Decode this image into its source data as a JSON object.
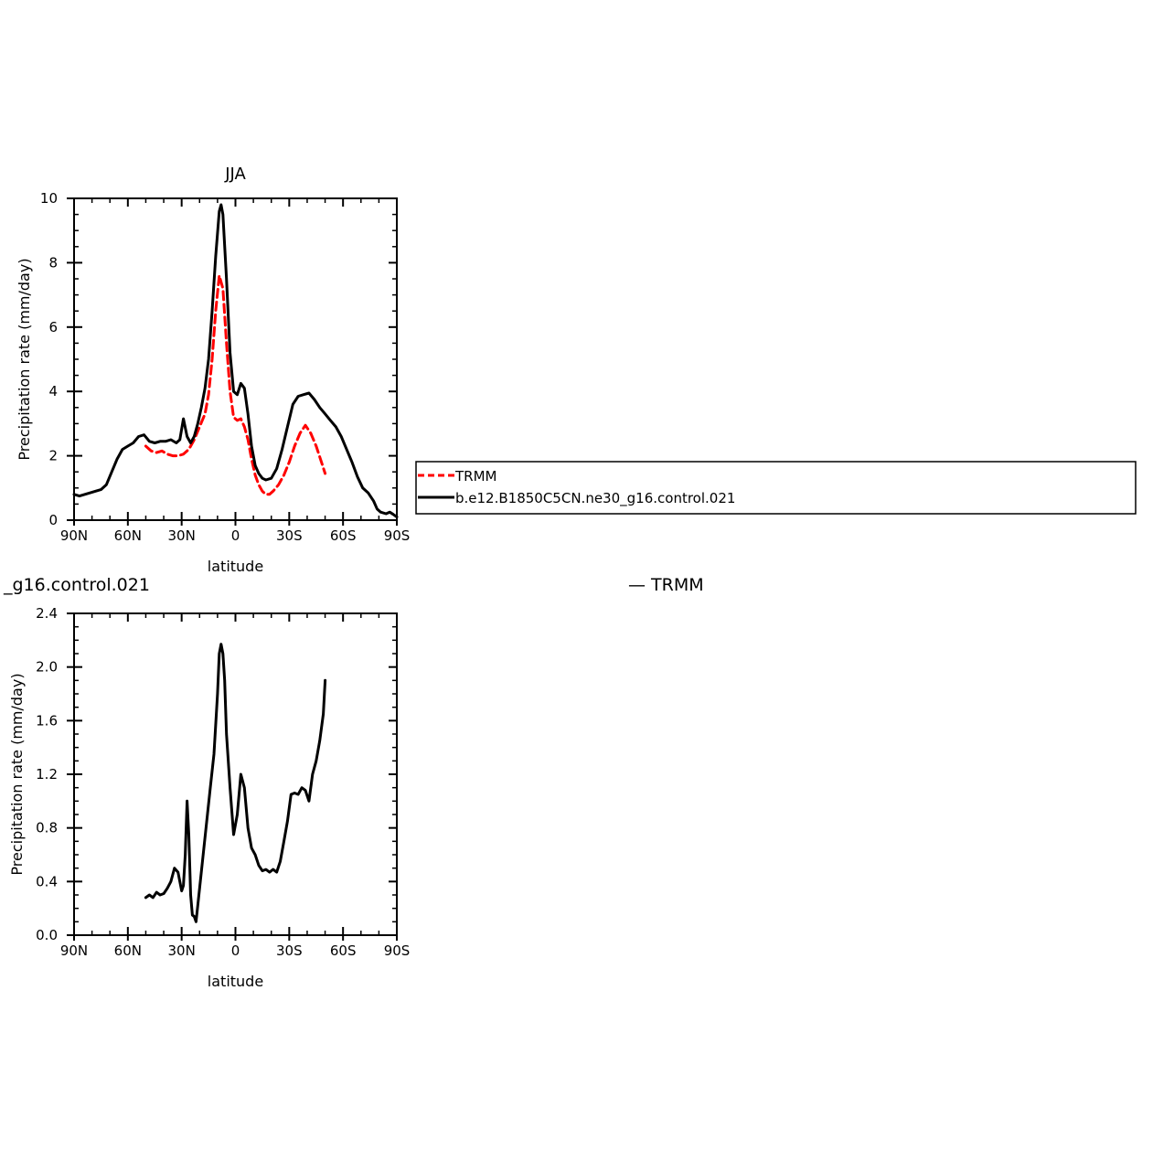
{
  "chart_data": [
    {
      "type": "line",
      "title": "JJA",
      "xlabel": "latitude",
      "ylabel": "Precipitation rate (mm/day)",
      "xlim": [
        -90,
        90
      ],
      "ylim": [
        0,
        10
      ],
      "x_ticks": [
        {
          "value": -90,
          "label": "90N"
        },
        {
          "value": -60,
          "label": "60N"
        },
        {
          "value": -30,
          "label": "30N"
        },
        {
          "value": 0,
          "label": "0"
        },
        {
          "value": 30,
          "label": "30S"
        },
        {
          "value": 60,
          "label": "60S"
        },
        {
          "value": 90,
          "label": "90S"
        }
      ],
      "y_ticks": [
        {
          "value": 0,
          "label": "0"
        },
        {
          "value": 2,
          "label": "2"
        },
        {
          "value": 4,
          "label": "4"
        },
        {
          "value": 6,
          "label": "6"
        },
        {
          "value": 8,
          "label": "8"
        },
        {
          "value": 10,
          "label": "10"
        }
      ],
      "legend": {
        "placement": "right",
        "entries": [
          "TRMM",
          "b.e12.B1850C5CN.ne30_g16.control.021"
        ]
      },
      "series": [
        {
          "name": "TRMM",
          "color": "#ff0000",
          "style": "dashed",
          "points": [
            [
              -50,
              2.3
            ],
            [
              -47,
              2.15
            ],
            [
              -44,
              2.1
            ],
            [
              -41,
              2.15
            ],
            [
              -38,
              2.05
            ],
            [
              -35,
              2.0
            ],
            [
              -32,
              2.0
            ],
            [
              -29,
              2.05
            ],
            [
              -26,
              2.2
            ],
            [
              -23,
              2.5
            ],
            [
              -20,
              2.9
            ],
            [
              -17,
              3.3
            ],
            [
              -15,
              3.9
            ],
            [
              -13,
              5.0
            ],
            [
              -11,
              6.5
            ],
            [
              -9,
              7.6
            ],
            [
              -7,
              7.2
            ],
            [
              -5,
              5.5
            ],
            [
              -3,
              4.0
            ],
            [
              -1,
              3.2
            ],
            [
              1,
              3.1
            ],
            [
              3,
              3.15
            ],
            [
              5,
              2.9
            ],
            [
              7,
              2.5
            ],
            [
              9,
              1.9
            ],
            [
              11,
              1.4
            ],
            [
              13,
              1.1
            ],
            [
              15,
              0.9
            ],
            [
              17,
              0.8
            ],
            [
              19,
              0.8
            ],
            [
              21,
              0.9
            ],
            [
              24,
              1.1
            ],
            [
              27,
              1.4
            ],
            [
              30,
              1.8
            ],
            [
              33,
              2.3
            ],
            [
              36,
              2.7
            ],
            [
              39,
              2.95
            ],
            [
              42,
              2.7
            ],
            [
              45,
              2.3
            ],
            [
              48,
              1.8
            ],
            [
              50,
              1.45
            ]
          ]
        },
        {
          "name": "b.e12.B1850C5CN.ne30_g16.control.021",
          "color": "#000000",
          "style": "solid",
          "points": [
            [
              -90,
              0.8
            ],
            [
              -87,
              0.75
            ],
            [
              -84,
              0.8
            ],
            [
              -81,
              0.85
            ],
            [
              -78,
              0.9
            ],
            [
              -75,
              0.95
            ],
            [
              -72,
              1.1
            ],
            [
              -69,
              1.5
            ],
            [
              -66,
              1.9
            ],
            [
              -63,
              2.2
            ],
            [
              -60,
              2.3
            ],
            [
              -57,
              2.4
            ],
            [
              -54,
              2.6
            ],
            [
              -51,
              2.65
            ],
            [
              -48,
              2.45
            ],
            [
              -45,
              2.4
            ],
            [
              -42,
              2.45
            ],
            [
              -39,
              2.45
            ],
            [
              -36,
              2.5
            ],
            [
              -33,
              2.4
            ],
            [
              -31,
              2.5
            ],
            [
              -29,
              3.15
            ],
            [
              -27,
              2.6
            ],
            [
              -25,
              2.4
            ],
            [
              -23,
              2.6
            ],
            [
              -21,
              3.0
            ],
            [
              -19,
              3.5
            ],
            [
              -17,
              4.1
            ],
            [
              -15,
              5.0
            ],
            [
              -13,
              6.5
            ],
            [
              -11,
              8.2
            ],
            [
              -9,
              9.6
            ],
            [
              -8,
              9.8
            ],
            [
              -7,
              9.5
            ],
            [
              -5,
              7.5
            ],
            [
              -3,
              5.2
            ],
            [
              -1,
              4.0
            ],
            [
              1,
              3.9
            ],
            [
              3,
              4.25
            ],
            [
              5,
              4.1
            ],
            [
              7,
              3.3
            ],
            [
              9,
              2.3
            ],
            [
              11,
              1.7
            ],
            [
              13,
              1.45
            ],
            [
              15,
              1.3
            ],
            [
              17,
              1.25
            ],
            [
              20,
              1.3
            ],
            [
              23,
              1.6
            ],
            [
              26,
              2.2
            ],
            [
              29,
              2.9
            ],
            [
              32,
              3.6
            ],
            [
              35,
              3.85
            ],
            [
              38,
              3.9
            ],
            [
              41,
              3.95
            ],
            [
              44,
              3.75
            ],
            [
              47,
              3.5
            ],
            [
              50,
              3.3
            ],
            [
              53,
              3.1
            ],
            [
              56,
              2.9
            ],
            [
              59,
              2.6
            ],
            [
              62,
              2.2
            ],
            [
              65,
              1.8
            ],
            [
              68,
              1.35
            ],
            [
              71,
              1.0
            ],
            [
              74,
              0.85
            ],
            [
              77,
              0.6
            ],
            [
              79,
              0.35
            ],
            [
              81,
              0.25
            ],
            [
              84,
              0.2
            ],
            [
              86,
              0.25
            ],
            [
              88,
              0.18
            ],
            [
              90,
              0.1
            ]
          ]
        }
      ]
    },
    {
      "type": "line",
      "title": "_g16.control.021",
      "subtitle": "— TRMM",
      "xlabel": "latitude",
      "ylabel": "Precipitation rate (mm/day)",
      "xlim": [
        -90,
        90
      ],
      "ylim": [
        0,
        2.4
      ],
      "x_ticks": [
        {
          "value": -90,
          "label": "90N"
        },
        {
          "value": -60,
          "label": "60N"
        },
        {
          "value": -30,
          "label": "30N"
        },
        {
          "value": 0,
          "label": "0"
        },
        {
          "value": 30,
          "label": "30S"
        },
        {
          "value": 60,
          "label": "60S"
        },
        {
          "value": 90,
          "label": "90S"
        }
      ],
      "y_ticks": [
        {
          "value": 0,
          "label": "0.0"
        },
        {
          "value": 0.4,
          "label": "0.4"
        },
        {
          "value": 0.8,
          "label": "0.8"
        },
        {
          "value": 1.2,
          "label": "1.2"
        },
        {
          "value": 1.6,
          "label": "1.6"
        },
        {
          "value": 2.0,
          "label": "2.0"
        },
        {
          "value": 2.4,
          "label": "2.4"
        }
      ],
      "series": [
        {
          "color": "#000000",
          "style": "solid",
          "points": [
            [
              -50,
              0.28
            ],
            [
              -48,
              0.3
            ],
            [
              -46,
              0.28
            ],
            [
              -44,
              0.32
            ],
            [
              -42,
              0.3
            ],
            [
              -40,
              0.31
            ],
            [
              -38,
              0.35
            ],
            [
              -36,
              0.4
            ],
            [
              -34,
              0.5
            ],
            [
              -32,
              0.47
            ],
            [
              -30,
              0.33
            ],
            [
              -29,
              0.37
            ],
            [
              -28,
              0.6
            ],
            [
              -27,
              1.0
            ],
            [
              -26,
              0.75
            ],
            [
              -25,
              0.3
            ],
            [
              -24,
              0.15
            ],
            [
              -23,
              0.14
            ],
            [
              -22,
              0.1
            ],
            [
              -20,
              0.35
            ],
            [
              -18,
              0.6
            ],
            [
              -16,
              0.85
            ],
            [
              -14,
              1.1
            ],
            [
              -12,
              1.35
            ],
            [
              -10,
              1.8
            ],
            [
              -9,
              2.1
            ],
            [
              -8,
              2.17
            ],
            [
              -7,
              2.1
            ],
            [
              -6,
              1.9
            ],
            [
              -5,
              1.5
            ],
            [
              -3,
              1.1
            ],
            [
              -1,
              0.75
            ],
            [
              1,
              0.9
            ],
            [
              3,
              1.2
            ],
            [
              5,
              1.1
            ],
            [
              7,
              0.8
            ],
            [
              9,
              0.65
            ],
            [
              11,
              0.6
            ],
            [
              13,
              0.52
            ],
            [
              15,
              0.48
            ],
            [
              17,
              0.49
            ],
            [
              19,
              0.47
            ],
            [
              21,
              0.49
            ],
            [
              23,
              0.47
            ],
            [
              25,
              0.55
            ],
            [
              27,
              0.7
            ],
            [
              29,
              0.85
            ],
            [
              31,
              1.05
            ],
            [
              33,
              1.06
            ],
            [
              35,
              1.05
            ],
            [
              37,
              1.1
            ],
            [
              39,
              1.08
            ],
            [
              41,
              1.0
            ],
            [
              43,
              1.2
            ],
            [
              45,
              1.3
            ],
            [
              47,
              1.45
            ],
            [
              49,
              1.65
            ],
            [
              50,
              1.9
            ]
          ]
        }
      ]
    }
  ]
}
